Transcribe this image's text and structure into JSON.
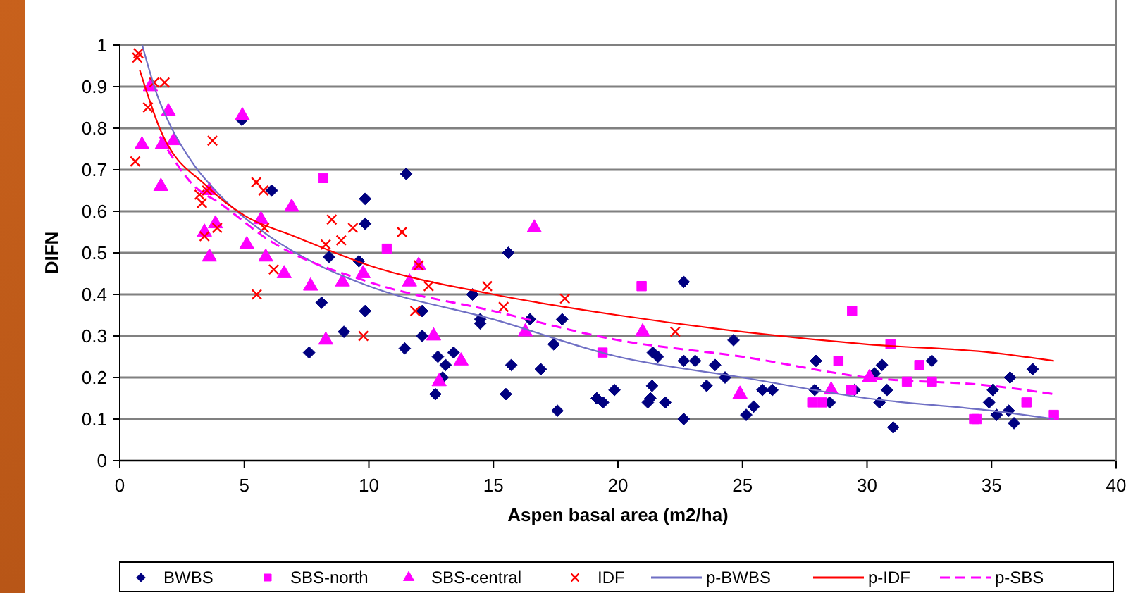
{
  "chart_data": {
    "type": "scatter",
    "xlabel": "Aspen basal area (m2/ha)",
    "ylabel": "DIFN",
    "xlim": [
      0,
      40
    ],
    "ylim": [
      0,
      1
    ],
    "xticks": [
      0,
      5,
      10,
      15,
      20,
      25,
      30,
      35,
      40
    ],
    "yticks": [
      0,
      0.1,
      0.2,
      0.3,
      0.4,
      0.5,
      0.6,
      0.7,
      0.8,
      0.9,
      1
    ],
    "grid": "y",
    "legend": "bottom",
    "series": [
      {
        "name": "BWBS",
        "color": "#000080",
        "marker": "diamond",
        "x": [
          4.9,
          6.1,
          7.6,
          8.1,
          8.4,
          9.0,
          9.6,
          9.85,
          9.85,
          9.85,
          11.5,
          11.44,
          12.14,
          12.14,
          12.77,
          13.08,
          13.4,
          12.96,
          12.67,
          14.16,
          14.47,
          14.47,
          15.6,
          15.72,
          15.5,
          16.47,
          16.9,
          17.42,
          17.57,
          17.76,
          19.15,
          19.4,
          19.86,
          22.64,
          21.4,
          21.6,
          22.64,
          23.1,
          21.37,
          21.3,
          21.2,
          21.9,
          22.64,
          23.9,
          23.56,
          24.3,
          24.64,
          25.15,
          25.45,
          25.8,
          26.2,
          27.95,
          27.9,
          28.5,
          29.5,
          30.3,
          30.6,
          30.8,
          30.5,
          31.05,
          32.6,
          35.74,
          36.65,
          35.05,
          34.9,
          35.2,
          35.69,
          35.9
        ],
        "values": [
          0.82,
          0.65,
          0.26,
          0.38,
          0.49,
          0.31,
          0.48,
          0.57,
          0.36,
          0.63,
          0.69,
          0.27,
          0.36,
          0.3,
          0.25,
          0.23,
          0.26,
          0.2,
          0.16,
          0.4,
          0.34,
          0.33,
          0.5,
          0.23,
          0.16,
          0.34,
          0.22,
          0.28,
          0.12,
          0.34,
          0.15,
          0.14,
          0.17,
          0.43,
          0.26,
          0.25,
          0.24,
          0.24,
          0.18,
          0.15,
          0.14,
          0.14,
          0.1,
          0.23,
          0.18,
          0.2,
          0.29,
          0.11,
          0.13,
          0.17,
          0.17,
          0.24,
          0.17,
          0.14,
          0.17,
          0.21,
          0.23,
          0.17,
          0.14,
          0.08,
          0.24,
          0.2,
          0.22,
          0.17,
          0.14,
          0.11,
          0.12,
          0.09
        ]
      },
      {
        "name": "SBS-north",
        "color": "#ff00ff",
        "marker": "square",
        "x": [
          8.17,
          10.72,
          19.38,
          20.95,
          29.4,
          28.85,
          29.37,
          27.8,
          28.2,
          30.94,
          32.1,
          31.6,
          32.6,
          34.3,
          34.4,
          36.4,
          37.5
        ],
        "values": [
          0.68,
          0.51,
          0.26,
          0.42,
          0.36,
          0.24,
          0.17,
          0.14,
          0.14,
          0.28,
          0.23,
          0.19,
          0.19,
          0.1,
          0.1,
          0.14,
          0.11
        ]
      },
      {
        "name": "SBS-central",
        "color": "#ff00ff",
        "marker": "triangle",
        "x": [
          1.23,
          0.89,
          1.95,
          1.65,
          1.7,
          2.17,
          4.92,
          3.4,
          3.6,
          3.6,
          3.84,
          5.1,
          5.67,
          5.86,
          6.6,
          6.9,
          7.66,
          8.27,
          8.94,
          9.77,
          12.0,
          11.63,
          12.6,
          13.7,
          12.82,
          16.64,
          16.28,
          20.99,
          24.9,
          28.56,
          30.1
        ],
        "values": [
          0.9,
          0.76,
          0.84,
          0.66,
          0.76,
          0.77,
          0.83,
          0.55,
          0.65,
          0.49,
          0.57,
          0.52,
          0.58,
          0.49,
          0.45,
          0.61,
          0.42,
          0.29,
          0.43,
          0.45,
          0.47,
          0.43,
          0.3,
          0.24,
          0.19,
          0.56,
          0.31,
          0.31,
          0.16,
          0.17,
          0.2
        ]
      },
      {
        "name": "IDF",
        "color": "#ff0000",
        "marker": "cross",
        "x": [
          0.7,
          0.75,
          1.38,
          1.8,
          1.13,
          0.62,
          3.72,
          3.2,
          3.3,
          3.4,
          3.5,
          3.91,
          5.48,
          5.77,
          5.8,
          5.5,
          6.18,
          8.51,
          8.27,
          8.89,
          9.36,
          9.78,
          11.33,
          12.0,
          12.4,
          11.86,
          14.75,
          15.41,
          17.87,
          22.3
        ],
        "values": [
          0.97,
          0.98,
          0.91,
          0.91,
          0.85,
          0.72,
          0.77,
          0.64,
          0.62,
          0.54,
          0.65,
          0.56,
          0.67,
          0.65,
          0.56,
          0.4,
          0.46,
          0.58,
          0.52,
          0.53,
          0.56,
          0.3,
          0.55,
          0.47,
          0.42,
          0.36,
          0.42,
          0.37,
          0.39,
          0.31
        ]
      },
      {
        "name": "p-BWBS",
        "type": "line",
        "color": "#6f6fc4",
        "marker": "none",
        "line_style": "solid",
        "x": [
          0.9,
          1.5,
          2,
          3,
          4,
          6,
          8,
          10,
          15,
          20,
          25,
          30,
          35,
          37.5
        ],
        "values": [
          1.0,
          0.88,
          0.81,
          0.71,
          0.64,
          0.54,
          0.47,
          0.42,
          0.34,
          0.25,
          0.2,
          0.15,
          0.12,
          0.1
        ]
      },
      {
        "name": "p-IDF",
        "type": "line",
        "color": "#ff0000",
        "marker": "none",
        "line_style": "solid",
        "x": [
          0.8,
          1.6,
          3.5,
          5,
          7,
          10,
          15,
          20,
          25,
          30,
          35,
          37.5
        ],
        "values": [
          0.94,
          0.8,
          0.66,
          0.59,
          0.54,
          0.47,
          0.4,
          0.35,
          0.31,
          0.28,
          0.26,
          0.24
        ]
      },
      {
        "name": "p-SBS",
        "type": "line",
        "color": "#ff00ff",
        "marker": "none",
        "line_style": "dashed",
        "x": [
          1.6,
          3,
          4,
          6,
          10,
          15,
          20,
          25,
          30,
          35,
          37.5
        ],
        "values": [
          0.78,
          0.66,
          0.62,
          0.53,
          0.43,
          0.36,
          0.29,
          0.25,
          0.2,
          0.18,
          0.16
        ]
      }
    ]
  }
}
